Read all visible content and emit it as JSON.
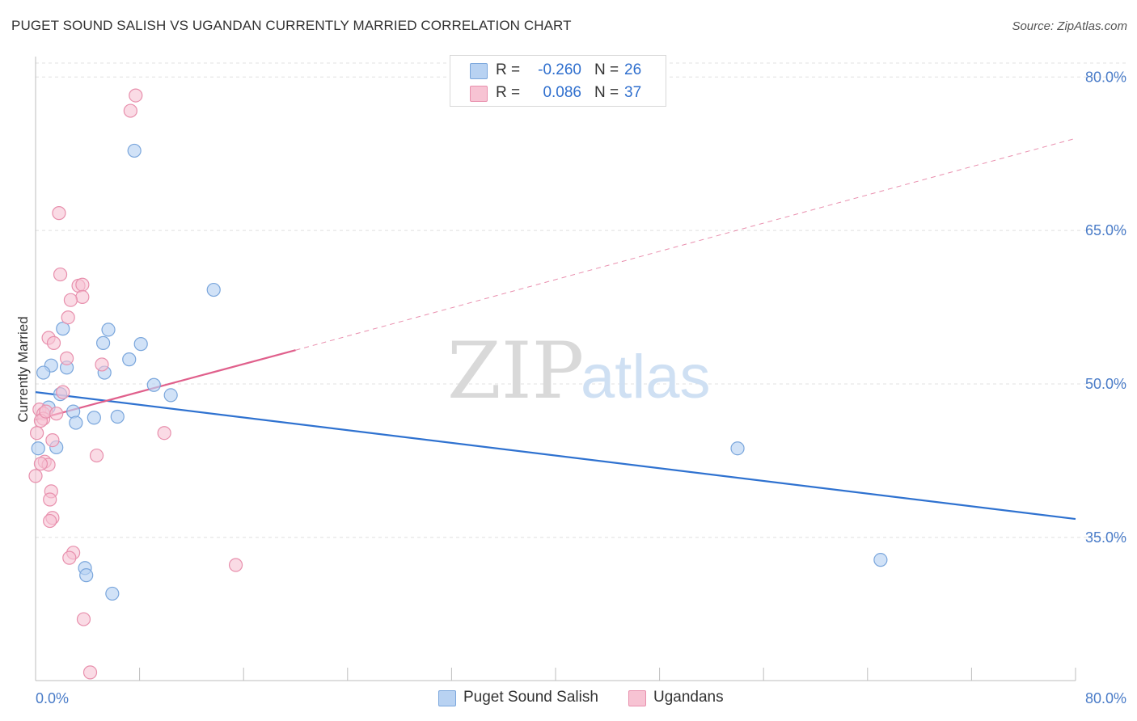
{
  "title": "PUGET SOUND SALISH VS UGANDAN CURRENTLY MARRIED CORRELATION CHART",
  "source": "Source: ZipAtlas.com",
  "watermark": {
    "zip": "ZIP",
    "atlas": "atlas"
  },
  "legend": {
    "rows": [
      {
        "r_label": "R =",
        "r_value": "-0.260",
        "n_label": "N =",
        "n_value": "26"
      },
      {
        "r_label": "R =",
        "r_value": "0.086",
        "n_label": "N =",
        "n_value": "37"
      }
    ]
  },
  "bottom_legend": [
    "Puget Sound Salish",
    "Ugandans"
  ],
  "colors": {
    "blue_fill": "#b8d2f2",
    "blue_stroke": "#7aa6dc",
    "blue_line": "#2f72d0",
    "pink_fill": "#f7c3d3",
    "pink_stroke": "#e890ad",
    "pink_line": "#e0608c",
    "tick": "#4a7cc8",
    "grid": "#e0e0e0"
  },
  "chart_data": {
    "type": "scatter",
    "title": "PUGET SOUND SALISH VS UGANDAN CURRENTLY MARRIED CORRELATION CHART",
    "xlabel": "",
    "ylabel": "Currently Married",
    "xlim": [
      0,
      80
    ],
    "ylim": [
      21,
      82
    ],
    "x_tick_labels": [
      "0.0%",
      "80.0%"
    ],
    "y_ticks": [
      35,
      50,
      65,
      80
    ],
    "y_tick_labels": [
      "35.0%",
      "50.0%",
      "65.0%",
      "80.0%"
    ],
    "grid": true,
    "legend_position": "top-center",
    "series": [
      {
        "name": "Puget Sound Salish",
        "points": [
          [
            7.6,
            72.8
          ],
          [
            13.7,
            59.2
          ],
          [
            5.6,
            55.3
          ],
          [
            2.1,
            55.4
          ],
          [
            5.2,
            54.0
          ],
          [
            8.1,
            53.9
          ],
          [
            1.2,
            51.8
          ],
          [
            2.4,
            51.6
          ],
          [
            7.2,
            52.4
          ],
          [
            0.6,
            51.1
          ],
          [
            5.3,
            51.1
          ],
          [
            9.1,
            49.9
          ],
          [
            1.9,
            49.0
          ],
          [
            10.4,
            48.9
          ],
          [
            1.0,
            47.7
          ],
          [
            2.9,
            47.3
          ],
          [
            4.5,
            46.7
          ],
          [
            6.3,
            46.8
          ],
          [
            3.1,
            46.2
          ],
          [
            1.6,
            43.8
          ],
          [
            54.0,
            43.7
          ],
          [
            0.2,
            43.7
          ],
          [
            3.8,
            32.0
          ],
          [
            3.9,
            31.3
          ],
          [
            5.9,
            29.5
          ],
          [
            65.0,
            32.8
          ]
        ],
        "trend": {
          "x": [
            0,
            80
          ],
          "y": [
            49.2,
            36.8
          ]
        }
      },
      {
        "name": "Ugandans",
        "points": [
          [
            7.7,
            78.2
          ],
          [
            7.3,
            76.7
          ],
          [
            1.8,
            66.7
          ],
          [
            1.9,
            60.7
          ],
          [
            3.3,
            59.6
          ],
          [
            3.6,
            59.7
          ],
          [
            3.6,
            58.5
          ],
          [
            2.7,
            58.2
          ],
          [
            2.5,
            56.5
          ],
          [
            1.0,
            54.5
          ],
          [
            1.4,
            54.0
          ],
          [
            2.4,
            52.5
          ],
          [
            5.1,
            51.9
          ],
          [
            2.1,
            49.2
          ],
          [
            0.3,
            47.5
          ],
          [
            0.6,
            47.1
          ],
          [
            0.6,
            46.6
          ],
          [
            0.4,
            46.4
          ],
          [
            0.1,
            45.2
          ],
          [
            9.9,
            45.2
          ],
          [
            1.3,
            44.5
          ],
          [
            4.7,
            43.0
          ],
          [
            0.7,
            42.4
          ],
          [
            1.0,
            42.1
          ],
          [
            0.4,
            42.2
          ],
          [
            0.0,
            41.0
          ],
          [
            1.2,
            39.5
          ],
          [
            1.1,
            38.7
          ],
          [
            1.3,
            36.9
          ],
          [
            1.1,
            36.6
          ],
          [
            2.9,
            33.5
          ],
          [
            2.6,
            33.0
          ],
          [
            15.4,
            32.3
          ],
          [
            3.7,
            27.0
          ],
          [
            4.2,
            21.8
          ],
          [
            0.8,
            47.3
          ],
          [
            1.6,
            47.1
          ]
        ],
        "trend": {
          "x": [
            0,
            20
          ],
          "y": [
            46.5,
            53.3
          ]
        },
        "trend_extension": {
          "x": [
            20,
            80
          ],
          "y": [
            53.3,
            74.0
          ]
        }
      }
    ]
  }
}
